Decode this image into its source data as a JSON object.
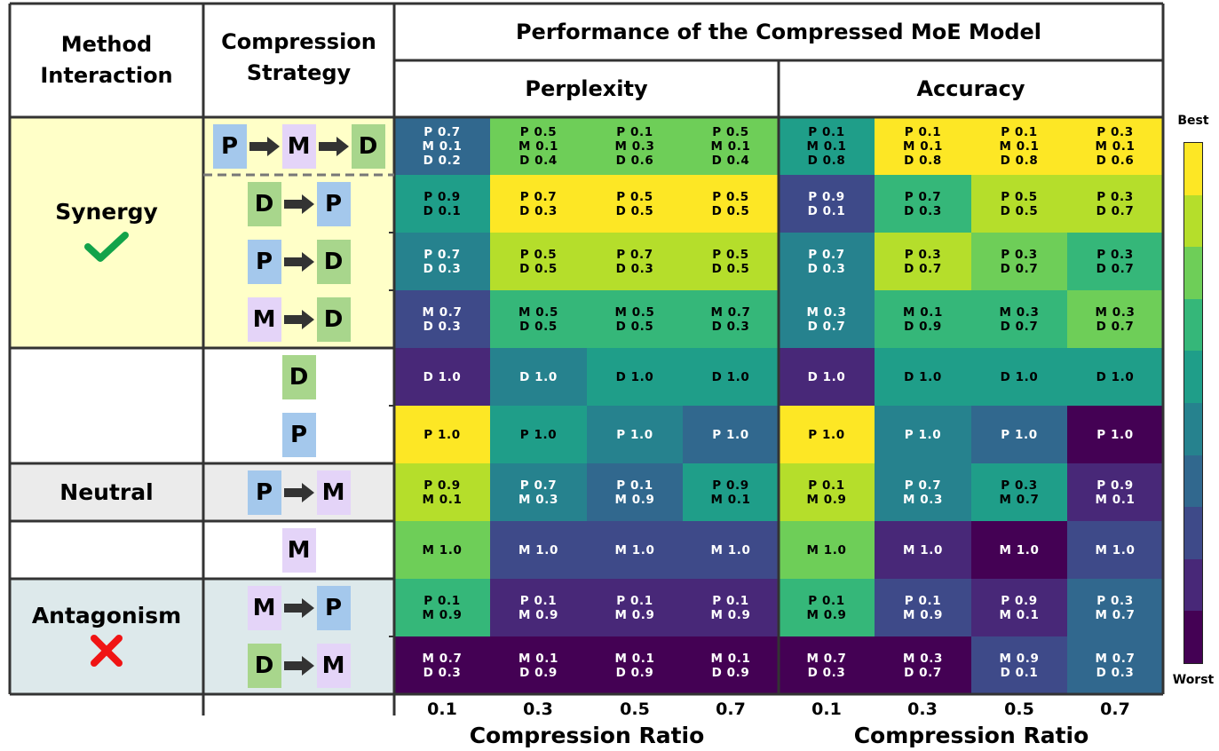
{
  "header": {
    "method_interaction": [
      "Method",
      "Interaction"
    ],
    "compression_strategy": [
      "Compression",
      "Strategy"
    ],
    "performance": "Performance of the Compressed MoE Model",
    "perplexity": "Perplexity",
    "accuracy": "Accuracy"
  },
  "groups": [
    {
      "label": "Synergy",
      "icon": "check-icon",
      "bg": "#ffffc8"
    },
    {
      "label": "Neutral",
      "icon": "",
      "bg": "#ebebeb"
    },
    {
      "label": "Antagonism",
      "icon": "cross-icon",
      "bg": "#dde9eb"
    }
  ],
  "block_colors": {
    "P": "#a4c8ec",
    "M": "#e4d4f8",
    "D": "#a8d68c"
  },
  "strategies": [
    [
      "P",
      "M",
      "D"
    ],
    [
      "D",
      "P"
    ],
    [
      "P",
      "D"
    ],
    [
      "M",
      "D"
    ],
    [
      "D"
    ],
    [
      "P"
    ],
    [
      "P",
      "M"
    ],
    [
      "M"
    ],
    [
      "M",
      "P"
    ],
    [
      "D",
      "M"
    ]
  ],
  "colorbar": {
    "best": "Best",
    "worst": "Worst"
  },
  "chart_data": [
    {
      "type": "heatmap",
      "title": "Perplexity",
      "xlabel": "Compression Ratio",
      "x_ticks": [
        "0.1",
        "0.3",
        "0.5",
        "0.7"
      ],
      "color_scale": "viridis, 10 levels, 0 = Worst, 9 = Best",
      "rows": [
        {
          "strategy": "P→M→D",
          "cells": [
            {
              "lines": [
                "P 0.7",
                "M 0.1",
                "D 0.2"
              ],
              "level": 3
            },
            {
              "lines": [
                "P 0.5",
                "M 0.1",
                "D 0.4"
              ],
              "level": 7
            },
            {
              "lines": [
                "P 0.1",
                "M 0.3",
                "D 0.6"
              ],
              "level": 7
            },
            {
              "lines": [
                "P 0.5",
                "M 0.1",
                "D 0.4"
              ],
              "level": 7
            }
          ]
        },
        {
          "strategy": "D→P",
          "cells": [
            {
              "lines": [
                "P 0.9",
                "D 0.1"
              ],
              "level": 5
            },
            {
              "lines": [
                "P 0.7",
                "D 0.3"
              ],
              "level": 9
            },
            {
              "lines": [
                "P 0.5",
                "D 0.5"
              ],
              "level": 9
            },
            {
              "lines": [
                "P 0.5",
                "D 0.5"
              ],
              "level": 9
            }
          ]
        },
        {
          "strategy": "P→D",
          "cells": [
            {
              "lines": [
                "P 0.7",
                "D 0.3"
              ],
              "level": 4
            },
            {
              "lines": [
                "P 0.5",
                "D 0.5"
              ],
              "level": 8
            },
            {
              "lines": [
                "P 0.7",
                "D 0.3"
              ],
              "level": 8
            },
            {
              "lines": [
                "P 0.5",
                "D 0.5"
              ],
              "level": 8
            }
          ]
        },
        {
          "strategy": "M→D",
          "cells": [
            {
              "lines": [
                "M 0.7",
                "D 0.3"
              ],
              "level": 2
            },
            {
              "lines": [
                "M 0.5",
                "D 0.5"
              ],
              "level": 6
            },
            {
              "lines": [
                "M 0.5",
                "D 0.5"
              ],
              "level": 6
            },
            {
              "lines": [
                "M 0.7",
                "D 0.3"
              ],
              "level": 6
            }
          ]
        },
        {
          "strategy": "D",
          "cells": [
            {
              "lines": [
                "D 1.0"
              ],
              "level": 1
            },
            {
              "lines": [
                "D 1.0"
              ],
              "level": 4
            },
            {
              "lines": [
                "D 1.0"
              ],
              "level": 5
            },
            {
              "lines": [
                "D 1.0"
              ],
              "level": 5
            }
          ]
        },
        {
          "strategy": "P",
          "cells": [
            {
              "lines": [
                "P 1.0"
              ],
              "level": 9
            },
            {
              "lines": [
                "P 1.0"
              ],
              "level": 5
            },
            {
              "lines": [
                "P 1.0"
              ],
              "level": 4
            },
            {
              "lines": [
                "P 1.0"
              ],
              "level": 3
            }
          ]
        },
        {
          "strategy": "P→M",
          "cells": [
            {
              "lines": [
                "P 0.9",
                "M 0.1"
              ],
              "level": 8
            },
            {
              "lines": [
                "P 0.7",
                "M 0.3"
              ],
              "level": 4
            },
            {
              "lines": [
                "P 0.1",
                "M 0.9"
              ],
              "level": 3
            },
            {
              "lines": [
                "P 0.9",
                "M 0.1"
              ],
              "level": 5
            }
          ]
        },
        {
          "strategy": "M",
          "cells": [
            {
              "lines": [
                "M 1.0"
              ],
              "level": 7
            },
            {
              "lines": [
                "M 1.0"
              ],
              "level": 2
            },
            {
              "lines": [
                "M 1.0"
              ],
              "level": 2
            },
            {
              "lines": [
                "M 1.0"
              ],
              "level": 2
            }
          ]
        },
        {
          "strategy": "M→P",
          "cells": [
            {
              "lines": [
                "P 0.1",
                "M 0.9"
              ],
              "level": 6
            },
            {
              "lines": [
                "P 0.1",
                "M 0.9"
              ],
              "level": 1
            },
            {
              "lines": [
                "P 0.1",
                "M 0.9"
              ],
              "level": 1
            },
            {
              "lines": [
                "P 0.1",
                "M 0.9"
              ],
              "level": 1
            }
          ]
        },
        {
          "strategy": "D→M",
          "cells": [
            {
              "lines": [
                "M 0.7",
                "D 0.3"
              ],
              "level": 0
            },
            {
              "lines": [
                "M 0.1",
                "D 0.9"
              ],
              "level": 0
            },
            {
              "lines": [
                "M 0.1",
                "D 0.9"
              ],
              "level": 0
            },
            {
              "lines": [
                "M 0.1",
                "D 0.9"
              ],
              "level": 0
            }
          ]
        }
      ]
    },
    {
      "type": "heatmap",
      "title": "Accuracy",
      "xlabel": "Compression Ratio",
      "x_ticks": [
        "0.1",
        "0.3",
        "0.5",
        "0.7"
      ],
      "color_scale": "viridis, 10 levels, 0 = Worst, 9 = Best",
      "rows": [
        {
          "strategy": "P→M→D",
          "cells": [
            {
              "lines": [
                "P 0.1",
                "M 0.1",
                "D 0.8"
              ],
              "level": 5
            },
            {
              "lines": [
                "P 0.1",
                "M 0.1",
                "D 0.8"
              ],
              "level": 9
            },
            {
              "lines": [
                "P 0.1",
                "M 0.1",
                "D 0.8"
              ],
              "level": 9
            },
            {
              "lines": [
                "P 0.3",
                "M 0.1",
                "D 0.6"
              ],
              "level": 9
            }
          ]
        },
        {
          "strategy": "D→P",
          "cells": [
            {
              "lines": [
                "P 0.9",
                "D 0.1"
              ],
              "level": 2
            },
            {
              "lines": [
                "P 0.7",
                "D 0.3"
              ],
              "level": 6
            },
            {
              "lines": [
                "P 0.5",
                "D 0.5"
              ],
              "level": 8
            },
            {
              "lines": [
                "P 0.3",
                "D 0.7"
              ],
              "level": 8
            }
          ]
        },
        {
          "strategy": "P→D",
          "cells": [
            {
              "lines": [
                "P 0.7",
                "D 0.3"
              ],
              "level": 4
            },
            {
              "lines": [
                "P 0.3",
                "D 0.7"
              ],
              "level": 8
            },
            {
              "lines": [
                "P 0.3",
                "D 0.7"
              ],
              "level": 7
            },
            {
              "lines": [
                "P 0.3",
                "D 0.7"
              ],
              "level": 6
            }
          ]
        },
        {
          "strategy": "M→D",
          "cells": [
            {
              "lines": [
                "M 0.3",
                "D 0.7"
              ],
              "level": 4
            },
            {
              "lines": [
                "M 0.1",
                "D 0.9"
              ],
              "level": 6
            },
            {
              "lines": [
                "M 0.3",
                "D 0.7"
              ],
              "level": 6
            },
            {
              "lines": [
                "M 0.3",
                "D 0.7"
              ],
              "level": 7
            }
          ]
        },
        {
          "strategy": "D",
          "cells": [
            {
              "lines": [
                "D 1.0"
              ],
              "level": 1
            },
            {
              "lines": [
                "D 1.0"
              ],
              "level": 5
            },
            {
              "lines": [
                "D 1.0"
              ],
              "level": 5
            },
            {
              "lines": [
                "D 1.0"
              ],
              "level": 5
            }
          ]
        },
        {
          "strategy": "P",
          "cells": [
            {
              "lines": [
                "P 1.0"
              ],
              "level": 9
            },
            {
              "lines": [
                "P 1.0"
              ],
              "level": 4
            },
            {
              "lines": [
                "P 1.0"
              ],
              "level": 3
            },
            {
              "lines": [
                "P 1.0"
              ],
              "level": 0
            }
          ]
        },
        {
          "strategy": "P→M",
          "cells": [
            {
              "lines": [
                "P 0.1",
                "M 0.9"
              ],
              "level": 8
            },
            {
              "lines": [
                "P 0.7",
                "M 0.3"
              ],
              "level": 4
            },
            {
              "lines": [
                "P 0.3",
                "M 0.7"
              ],
              "level": 5
            },
            {
              "lines": [
                "P 0.9",
                "M 0.1"
              ],
              "level": 1
            }
          ]
        },
        {
          "strategy": "M",
          "cells": [
            {
              "lines": [
                "M 1.0"
              ],
              "level": 7
            },
            {
              "lines": [
                "M 1.0"
              ],
              "level": 1
            },
            {
              "lines": [
                "M 1.0"
              ],
              "level": 0
            },
            {
              "lines": [
                "M 1.0"
              ],
              "level": 2
            }
          ]
        },
        {
          "strategy": "M→P",
          "cells": [
            {
              "lines": [
                "P 0.1",
                "M 0.9"
              ],
              "level": 6
            },
            {
              "lines": [
                "P 0.1",
                "M 0.9"
              ],
              "level": 2
            },
            {
              "lines": [
                "P 0.9",
                "M 0.1"
              ],
              "level": 1
            },
            {
              "lines": [
                "P 0.3",
                "M 0.7"
              ],
              "level": 3
            }
          ]
        },
        {
          "strategy": "D→M",
          "cells": [
            {
              "lines": [
                "M 0.7",
                "D 0.3"
              ],
              "level": 0
            },
            {
              "lines": [
                "M 0.3",
                "D 0.7"
              ],
              "level": 0
            },
            {
              "lines": [
                "M 0.9",
                "D 0.1"
              ],
              "level": 2
            },
            {
              "lines": [
                "M 0.7",
                "D 0.3"
              ],
              "level": 3
            }
          ]
        }
      ]
    }
  ]
}
